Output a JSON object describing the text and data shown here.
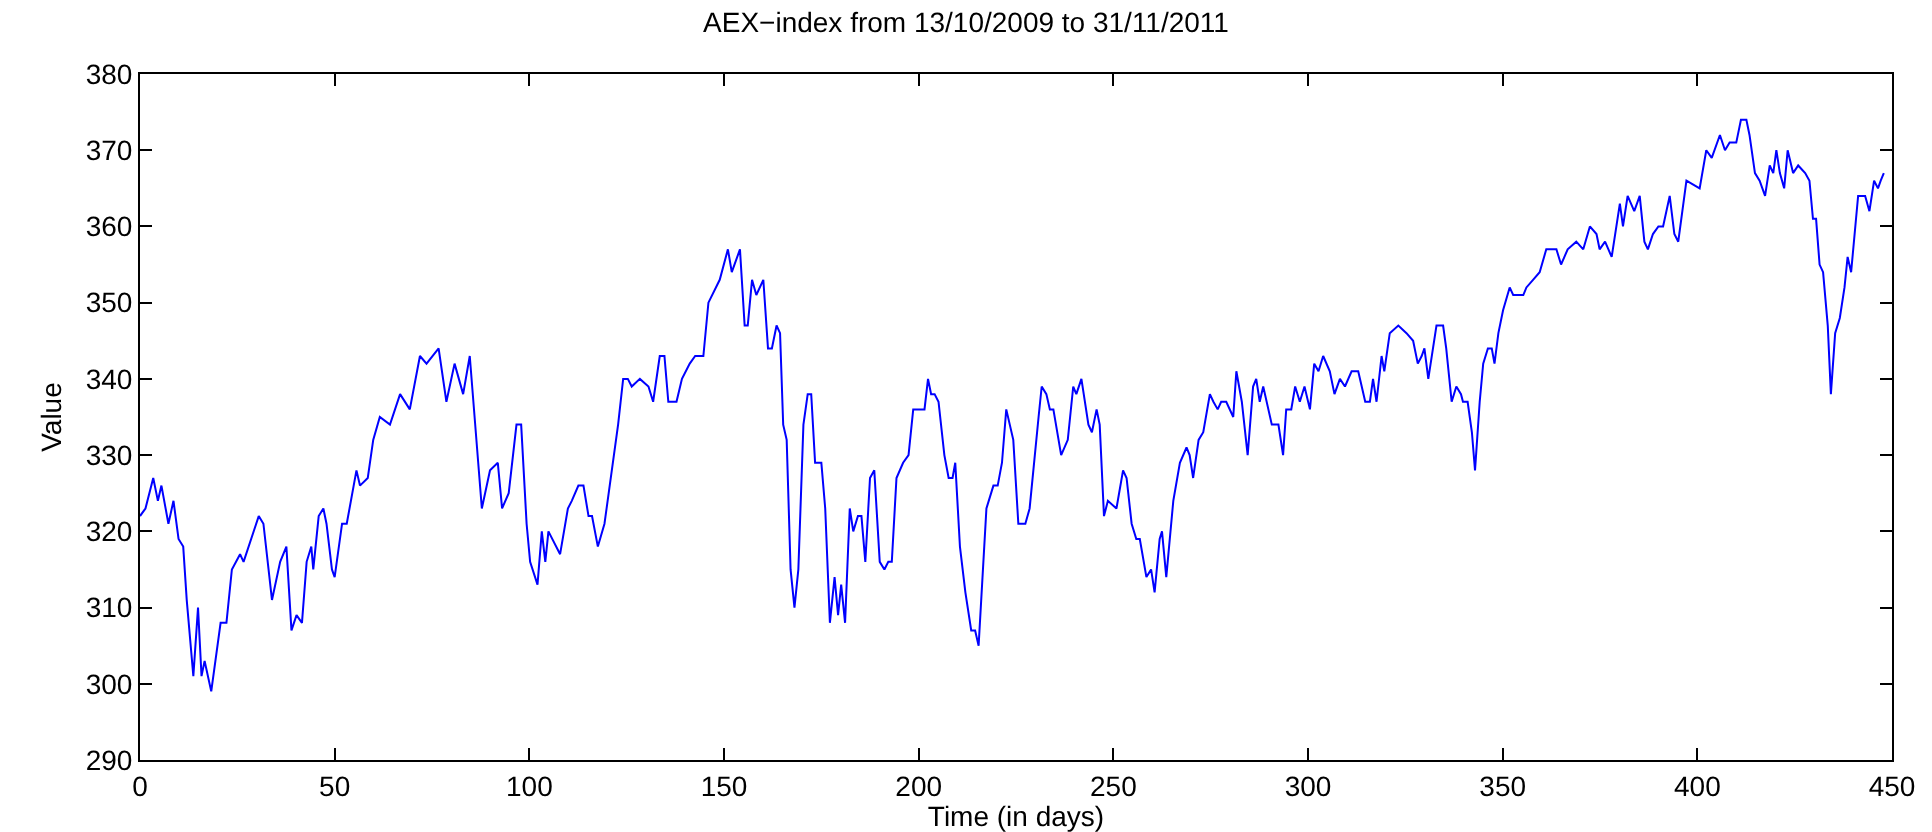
{
  "chart_data": {
    "type": "line",
    "title": "AEX−index from 13/10/2009 to 31/11/2011",
    "xlabel": "Time (in days)",
    "ylabel": "Value",
    "xlim": [
      0,
      450
    ],
    "xticks": [
      0,
      50,
      100,
      150,
      200,
      250,
      300,
      350,
      400,
      450
    ],
    "ylim": [
      290,
      380
    ],
    "yticks": [
      290,
      300,
      310,
      320,
      330,
      340,
      350,
      360,
      370,
      380
    ],
    "grid": false,
    "marker": "none",
    "line_style": "solid",
    "series": [
      {
        "color": "#0000ff",
        "x": [
          0,
          1.4,
          3.4,
          4.6,
          5.5,
          7.3,
          8.6,
          9.9,
          11.1,
          12,
          13.7,
          14.9,
          15.8,
          16.6,
          18.3,
          20.7,
          22.2,
          23.6,
          25.7,
          26.6,
          30.5,
          31.7,
          33.9,
          36,
          37.6,
          38.9,
          40.2,
          41.6,
          42.8,
          44,
          44.5,
          45.9,
          47.1,
          47.9,
          49.3,
          50,
          51.9,
          53.1,
          55.6,
          56.5,
          58.5,
          59.9,
          61.6,
          64.2,
          66.8,
          69.3,
          71.9,
          73.6,
          76.7,
          78.7,
          80.8,
          83,
          84.7,
          87.8,
          89.9,
          91.9,
          93,
          94.7,
          96.7,
          97.9,
          99.3,
          100.2,
          102.1,
          103.2,
          104.1,
          104.9,
          107.9,
          109.9,
          110.9,
          112.6,
          113.9,
          115.2,
          116.1,
          117.6,
          119.3,
          122.8,
          124.1,
          125.3,
          126.3,
          128.4,
          130.6,
          131.8,
          133.5,
          134.7,
          135.7,
          137.8,
          139.2,
          141.2,
          142.6,
          144.7,
          146,
          148.9,
          151,
          152,
          154.1,
          155.3,
          156.1,
          157.2,
          158.3,
          160.1,
          161.3,
          162.3,
          163.5,
          164.4,
          165.2,
          166.1,
          167.1,
          168.1,
          169.1,
          170.4,
          171.5,
          172.4,
          173.4,
          175,
          176,
          177.2,
          178.4,
          179.3,
          180.1,
          181.1,
          182.3,
          183.2,
          184.4,
          185.3,
          186.3,
          187.5,
          188.6,
          190,
          191.2,
          192.2,
          193.1,
          194.3,
          196,
          197.4,
          198.6,
          200.3,
          201.5,
          202.4,
          203.2,
          204.1,
          205.1,
          206.6,
          207.7,
          208.7,
          209.4,
          210.6,
          212,
          213.5,
          214.5,
          215.4,
          217.4,
          219.2,
          220.3,
          221.4,
          222.5,
          224.3,
          225.6,
          227.4,
          228.5,
          230.8,
          231.6,
          232.8,
          233.7,
          234.6,
          236.6,
          238.3,
          239.7,
          240.5,
          241.8,
          243.6,
          244.5,
          245.7,
          246.5,
          247.6,
          248.6,
          250.8,
          252.5,
          253.4,
          254.7,
          255.9,
          256.8,
          258.5,
          259.7,
          260.6,
          261.9,
          262.5,
          263.6,
          265.4,
          267.1,
          268.8,
          269.6,
          270.5,
          271.9,
          273.1,
          274.8,
          275.7,
          276.8,
          277.7,
          279,
          280.8,
          281.6,
          283,
          284.5,
          285.9,
          286.7,
          287.6,
          288.5,
          290.7,
          292.4,
          293.6,
          294.4,
          295.7,
          296.7,
          297.9,
          299.1,
          300.5,
          301.6,
          302.7,
          303.9,
          305.6,
          306.8,
          308.2,
          309.5,
          311.2,
          312.9,
          314.7,
          315.9,
          316.7,
          317.6,
          318.9,
          319.6,
          321,
          323.2,
          325.3,
          327,
          328.2,
          329.2,
          329.9,
          330.9,
          332.1,
          333,
          334.7,
          335.5,
          336.9,
          338.1,
          339.3,
          339.8,
          341,
          342.1,
          342.9,
          344.1,
          345,
          346.2,
          347.2,
          347.9,
          348.9,
          350.1,
          351.8,
          352.7,
          354,
          355.3,
          356.1,
          357.8,
          359.5,
          361.2,
          363,
          363.8,
          365,
          366.7,
          368.9,
          370.7,
          372.4,
          374.1,
          374.9,
          376.3,
          378,
          380.1,
          380.9,
          382.1,
          383.8,
          385.2,
          386.4,
          387.3,
          388.6,
          390,
          391.2,
          392.9,
          394.1,
          395.1,
          397.2,
          400.6,
          402.3,
          403.7,
          405.8,
          407.1,
          408.3,
          410,
          411.2,
          412.6,
          413.4,
          414.8,
          416,
          417.4,
          418.6,
          419.5,
          420.3,
          421.2,
          422.3,
          423.2,
          424.6,
          425.9,
          427.7,
          428.8,
          429.7,
          430.5,
          431.4,
          432.3,
          433.5,
          434.3,
          435.4,
          436.6,
          437.8,
          438.6,
          439.5,
          441.3,
          443.1,
          444.2,
          445.4,
          446.4,
          447.1,
          447.9
        ],
        "values": [
          322,
          323,
          327,
          324,
          326,
          321,
          324,
          319,
          318,
          311,
          301,
          310,
          301,
          303,
          299,
          308,
          308,
          315,
          317,
          316,
          322,
          321,
          311,
          316,
          318,
          307,
          309,
          308,
          316,
          318,
          315,
          322,
          323,
          321,
          315,
          314,
          321,
          321,
          328,
          326,
          327,
          332,
          335,
          334,
          338,
          336,
          343,
          342,
          344,
          337,
          342,
          338,
          343,
          323,
          328,
          329,
          323,
          325,
          334,
          334,
          321,
          316,
          313,
          320,
          316,
          320,
          317,
          323,
          324,
          326,
          326,
          322,
          322,
          318,
          321,
          334,
          340,
          340,
          339,
          340,
          339,
          337,
          343,
          343,
          337,
          337,
          340,
          342,
          343,
          343,
          350,
          353,
          357,
          354,
          357,
          347,
          347,
          353,
          351,
          353,
          344,
          344,
          347,
          346,
          334,
          332,
          315,
          310,
          315,
          334,
          338,
          338,
          329,
          329,
          323,
          308,
          314,
          309,
          313,
          308,
          323,
          320,
          322,
          322,
          316,
          327,
          328,
          316,
          315,
          316,
          316,
          327,
          329,
          330,
          336,
          336,
          336,
          340,
          338,
          338,
          337,
          330,
          327,
          327,
          329,
          318,
          312,
          307,
          307,
          305,
          323,
          326,
          326,
          329,
          336,
          332,
          321,
          321,
          323,
          335,
          339,
          338,
          336,
          336,
          330,
          332,
          339,
          338,
          340,
          334,
          333,
          336,
          334,
          322,
          324,
          323,
          328,
          327,
          321,
          319,
          319,
          314,
          315,
          312,
          319,
          320,
          314,
          324,
          329,
          331,
          330,
          327,
          332,
          333,
          338,
          337,
          336,
          337,
          337,
          335,
          341,
          337,
          330,
          339,
          340,
          337,
          339,
          334,
          334,
          330,
          336,
          336,
          339,
          337,
          339,
          336,
          342,
          341,
          343,
          341,
          338,
          340,
          339,
          341,
          341,
          337,
          337,
          340,
          337,
          343,
          341,
          346,
          347,
          346,
          345,
          342,
          343,
          344,
          340,
          344,
          347,
          347,
          344,
          337,
          339,
          338,
          337,
          337,
          333,
          328,
          337,
          342,
          344,
          344,
          342,
          346,
          349,
          352,
          351,
          351,
          351,
          352,
          353,
          354,
          357,
          357,
          357,
          355,
          357,
          358,
          357,
          360,
          359,
          357,
          358,
          356,
          363,
          360,
          364,
          362,
          364,
          358,
          357,
          359,
          360,
          360,
          364,
          359,
          358,
          366,
          365,
          370,
          369,
          372,
          370,
          371,
          371,
          374,
          374,
          372,
          367,
          366,
          364,
          368,
          367,
          370,
          367,
          365,
          370,
          367,
          368,
          367,
          366,
          361,
          361,
          355,
          354,
          347,
          338,
          346,
          348,
          352,
          356,
          354,
          364,
          364,
          362,
          366,
          365,
          366,
          367
        ]
      }
    ]
  }
}
